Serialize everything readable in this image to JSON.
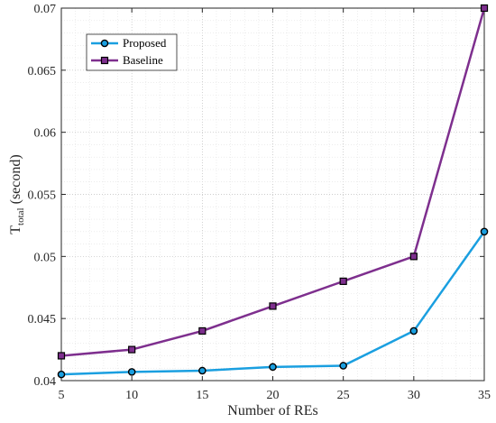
{
  "chart_data": {
    "type": "line",
    "title": "",
    "xlabel": "Number of REs",
    "ylabel_main": "T",
    "ylabel_sub": "total",
    "ylabel_rest": " (second)",
    "x": [
      5,
      10,
      15,
      20,
      25,
      30,
      35
    ],
    "xlim": [
      5,
      35
    ],
    "ylim": [
      0.04,
      0.07
    ],
    "xticks": [
      "5",
      "10",
      "15",
      "20",
      "25",
      "30",
      "35"
    ],
    "yticks": [
      "0.04",
      "0.045",
      "0.05",
      "0.055",
      "0.06",
      "0.065",
      "0.07"
    ],
    "grid": "on (dotted, major and minor)",
    "legend_position": "top-left",
    "series": [
      {
        "name": "Proposed",
        "color": "#1a9fe0",
        "marker": "circle",
        "values": [
          0.0405,
          0.0407,
          0.0408,
          0.0411,
          0.0412,
          0.044,
          0.052
        ]
      },
      {
        "name": "Baseline",
        "color": "#7e2f8e",
        "marker": "square",
        "values": [
          0.042,
          0.0425,
          0.044,
          0.046,
          0.048,
          0.05,
          0.07
        ]
      }
    ]
  }
}
